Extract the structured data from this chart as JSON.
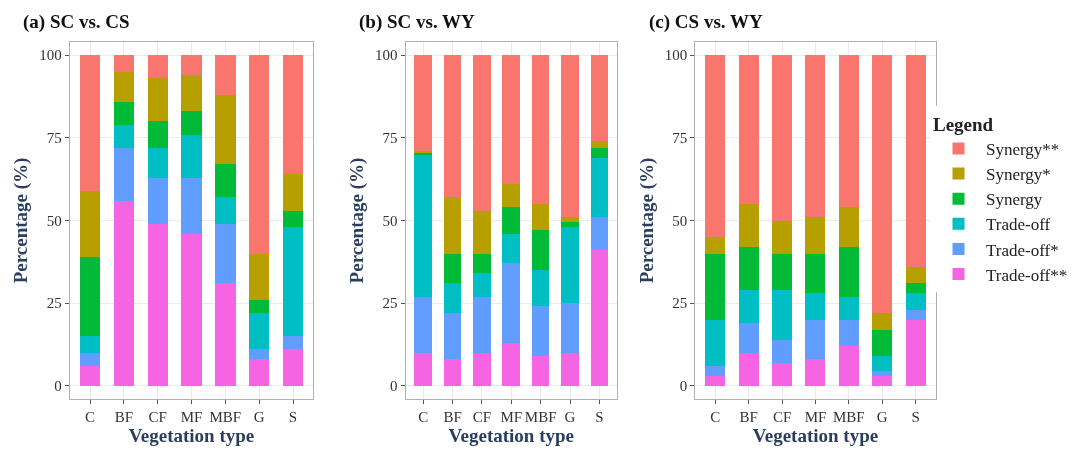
{
  "chart_data": [
    {
      "type": "bar",
      "stacked": true,
      "title": "(a) SC vs. CS",
      "xlabel": "Vegetation type",
      "ylabel": "Percentage (%)",
      "categories": [
        "C",
        "BF",
        "CF",
        "MF",
        "MBF",
        "G",
        "S"
      ],
      "ylim": [
        -4,
        104
      ],
      "yticks": [
        0,
        25,
        50,
        75,
        100
      ],
      "grid": true,
      "series": [
        {
          "color": "#f564e3",
          "values": [
            6,
            56,
            49,
            46,
            31,
            8,
            11
          ]
        },
        {
          "color": "#619cff",
          "values": [
            4,
            16,
            14,
            17,
            18,
            3,
            4
          ]
        },
        {
          "color": "#00bfc4",
          "values": [
            5,
            7,
            9,
            13,
            8,
            11,
            33
          ]
        },
        {
          "color": "#00ba38",
          "values": [
            24,
            7,
            8,
            7,
            10,
            4,
            5
          ]
        },
        {
          "color": "#b79f00",
          "values": [
            20,
            9,
            13,
            11,
            21,
            14,
            11
          ]
        },
        {
          "color": "#f8766d",
          "values": [
            41,
            5,
            7,
            6,
            12,
            60,
            36
          ]
        }
      ]
    },
    {
      "type": "bar",
      "stacked": true,
      "title": "(b) SC vs. WY",
      "xlabel": "Vegetation type",
      "ylabel": "Percentage (%)",
      "categories": [
        "C",
        "BF",
        "CF",
        "MF",
        "MBF",
        "G",
        "S"
      ],
      "ylim": [
        -4,
        104
      ],
      "yticks": [
        0,
        25,
        50,
        75,
        100
      ],
      "grid": true,
      "series": [
        {
          "color": "#f564e3",
          "values": [
            10,
            8,
            10,
            13,
            9,
            10,
            41
          ]
        },
        {
          "color": "#619cff",
          "values": [
            17,
            14,
            17,
            24,
            15,
            15,
            10
          ]
        },
        {
          "color": "#00bfc4",
          "values": [
            43,
            9,
            7,
            9,
            11,
            23,
            18
          ]
        },
        {
          "color": "#00ba38",
          "values": [
            0.5,
            9,
            6,
            8,
            12,
            1.5,
            3
          ]
        },
        {
          "color": "#b79f00",
          "values": [
            0.5,
            17,
            13,
            7,
            8,
            1.5,
            2
          ]
        },
        {
          "color": "#f8766d",
          "values": [
            29,
            43,
            47,
            39,
            45,
            49,
            26
          ]
        }
      ]
    },
    {
      "type": "bar",
      "stacked": true,
      "title": "(c) CS vs. WY",
      "xlabel": "Vegetation type",
      "ylabel": "Percentage (%)",
      "categories": [
        "C",
        "BF",
        "CF",
        "MF",
        "MBF",
        "G",
        "S"
      ],
      "ylim": [
        -4,
        104
      ],
      "yticks": [
        0,
        25,
        50,
        75,
        100
      ],
      "grid": true,
      "legend": "right",
      "legend_title": "Legend",
      "series": [
        {
          "name": "Trade-off**",
          "color": "#f564e3",
          "values": [
            3,
            10,
            7,
            8,
            12,
            3,
            20
          ]
        },
        {
          "name": "Trade-off*",
          "color": "#619cff",
          "values": [
            3,
            9,
            7,
            12,
            8,
            1.5,
            3
          ]
        },
        {
          "name": "Trade-off",
          "color": "#00bfc4",
          "values": [
            14,
            10,
            15,
            8,
            7,
            4.5,
            5
          ]
        },
        {
          "name": "Synergy",
          "color": "#00ba38",
          "values": [
            20,
            13,
            11,
            12,
            15,
            8,
            3
          ]
        },
        {
          "name": "Synergy*",
          "color": "#b79f00",
          "values": [
            5,
            13,
            10,
            11,
            12,
            5,
            5
          ]
        },
        {
          "name": "Synergy**",
          "color": "#f8766d",
          "values": [
            55,
            45,
            50,
            49,
            46,
            78,
            64
          ]
        }
      ]
    }
  ]
}
